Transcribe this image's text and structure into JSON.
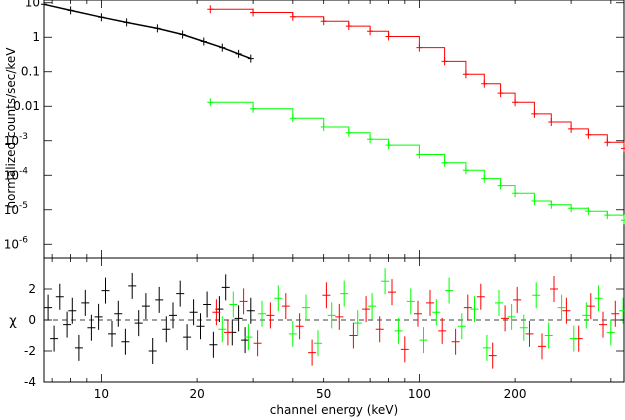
{
  "chart_data": [
    {
      "type": "scatter",
      "panel": "spectrum",
      "ylabel": "normalized counts/sec/keV",
      "xscale": "log",
      "yscale": "log",
      "xlim": [
        6.6,
        440
      ],
      "ylim": [
        4e-07,
        12
      ],
      "yticks": [
        {
          "value": 1e-06,
          "label": "10",
          "sup": "-6"
        },
        {
          "value": 1e-05,
          "label": "10",
          "sup": "-5"
        },
        {
          "value": 0.0001,
          "label": "10",
          "sup": "-4"
        },
        {
          "value": 0.001,
          "label": "10",
          "sup": "-3"
        },
        {
          "value": 0.01,
          "label": "0.01",
          "sup": ""
        },
        {
          "value": 0.1,
          "label": "0.1",
          "sup": ""
        },
        {
          "value": 1,
          "label": "1",
          "sup": ""
        },
        {
          "value": 10,
          "label": "10",
          "sup": ""
        }
      ],
      "series": [
        {
          "color": "#000000",
          "step": false,
          "x": [
            6.6,
            8,
            10,
            12,
            15,
            18,
            21,
            24,
            27,
            29.5
          ],
          "y": [
            9.0,
            6.0,
            3.8,
            2.7,
            1.8,
            1.2,
            0.75,
            0.5,
            0.33,
            0.24
          ]
        },
        {
          "color": "#ff0000",
          "step": true,
          "x": [
            22,
            30,
            40,
            50,
            60,
            70,
            80,
            100,
            120,
            140,
            160,
            180,
            200,
            230,
            260,
            300,
            340,
            390,
            440
          ],
          "y": [
            6.5,
            5.2,
            3.9,
            2.9,
            2.1,
            1.5,
            1.05,
            0.5,
            0.2,
            0.085,
            0.045,
            0.024,
            0.013,
            0.006,
            0.0035,
            0.0022,
            0.0015,
            0.0009,
            0.0006
          ]
        },
        {
          "color": "#00ff00",
          "step": true,
          "x": [
            22,
            30,
            40,
            50,
            60,
            70,
            80,
            100,
            120,
            140,
            160,
            180,
            200,
            230,
            260,
            300,
            340,
            390,
            440
          ],
          "y": [
            0.013,
            0.0085,
            0.0045,
            0.0025,
            0.0017,
            0.0011,
            0.00075,
            0.0004,
            0.00023,
            0.00014,
            8e-05,
            5e-05,
            3e-05,
            1.8e-05,
            1.4e-05,
            1.1e-05,
            9e-06,
            7e-06,
            5e-06
          ]
        }
      ]
    },
    {
      "type": "scatter",
      "panel": "residuals",
      "xlabel": "channel energy (keV)",
      "ylabel": "χ",
      "xscale": "log",
      "xlim": [
        6.6,
        440
      ],
      "ylim": [
        -4,
        4
      ],
      "xticks": [
        10,
        20,
        50,
        100,
        200
      ],
      "yticks": [
        -4,
        -2,
        0,
        2
      ],
      "reference_line": 0,
      "series": [
        {
          "color": "#000000",
          "x": [
            6.8,
            7.1,
            7.4,
            7.8,
            8.1,
            8.5,
            8.9,
            9.3,
            9.8,
            10.3,
            10.8,
            11.3,
            11.9,
            12.5,
            13.1,
            13.8,
            14.5,
            15.2,
            16.0,
            16.8,
            17.7,
            18.6,
            19.5,
            20.5,
            21.5,
            22.5,
            23.5,
            24.6,
            25.8,
            27.0,
            28.3,
            29.5
          ],
          "y": [
            0.8,
            -1.2,
            1.5,
            -0.3,
            0.6,
            -1.8,
            1.1,
            -0.5,
            0.2,
            1.9,
            -0.9,
            0.4,
            -1.4,
            2.2,
            -0.2,
            0.9,
            -2.0,
            1.3,
            -0.6,
            0.3,
            1.7,
            -1.1,
            0.5,
            -0.4,
            1.0,
            -1.6,
            0.7,
            2.1,
            -0.8,
            0.1,
            -1.3,
            0.6
          ]
        },
        {
          "color": "#ff0000",
          "x": [
            23,
            25,
            28,
            31,
            34,
            38,
            42,
            46,
            51,
            56,
            62,
            68,
            75,
            82,
            90,
            99,
            108,
            118,
            130,
            142,
            156,
            170,
            186,
            203,
            222,
            243,
            265,
            290,
            317,
            346,
            378,
            413
          ],
          "y": [
            0.5,
            -0.8,
            1.2,
            -1.5,
            0.3,
            0.9,
            -0.4,
            -2.1,
            1.6,
            0.2,
            -1.0,
            0.7,
            -0.6,
            1.8,
            -1.9,
            0.4,
            1.1,
            -0.7,
            -1.4,
            0.8,
            1.5,
            -2.3,
            0.1,
            1.3,
            -0.9,
            -1.7,
            2.0,
            0.6,
            -1.2,
            0.9,
            -0.3,
            0.4
          ]
        },
        {
          "color": "#00ff00",
          "x": [
            24,
            26,
            29,
            32,
            36,
            40,
            44,
            48,
            53,
            58,
            64,
            71,
            78,
            86,
            94,
            103,
            113,
            124,
            136,
            149,
            163,
            178,
            195,
            213,
            233,
            255,
            280,
            306,
            335,
            366,
            400,
            437
          ],
          "y": [
            -0.6,
            1.0,
            -1.1,
            0.4,
            1.4,
            -0.9,
            0.8,
            -1.5,
            0.3,
            1.7,
            -0.2,
            0.9,
            2.5,
            -0.7,
            1.2,
            -1.3,
            0.5,
            1.9,
            -0.4,
            0.7,
            -1.8,
            1.1,
            0.2,
            -0.5,
            1.6,
            -1.0,
            0.8,
            -1.2,
            0.3,
            1.4,
            -0.8,
            0.6
          ]
        }
      ]
    }
  ]
}
